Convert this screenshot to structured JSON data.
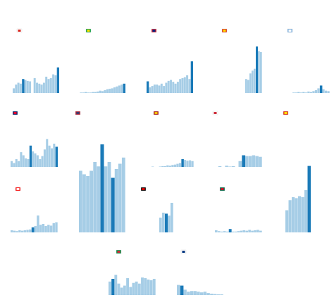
{
  "colors": {
    "bar": "#a6cde6",
    "highlight": "#1a7ab8",
    "background": "#ffffff"
  },
  "chart_data": [
    {
      "type": "bar",
      "flag_icon": "vietnam-flag-icon",
      "flag_colors": [
        "#ffffff",
        "#da251d"
      ],
      "ylim": [
        0,
        100
      ],
      "highlight_index": [
        4,
        19
      ],
      "values": [
        10,
        18,
        22,
        20,
        30,
        28,
        26,
        25,
        0,
        32,
        22,
        20,
        18,
        22,
        35,
        30,
        32,
        40,
        38,
        55
      ]
    },
    {
      "type": "bar",
      "flag_icon": "brazil-flag-icon",
      "flag_colors": [
        "#009c3b",
        "#ffdf00"
      ],
      "ylim": [
        0,
        100
      ],
      "highlight_index": [
        19
      ],
      "values": [
        0,
        1,
        1,
        2,
        1,
        1,
        2,
        2,
        3,
        5,
        4,
        6,
        8,
        9,
        10,
        12,
        14,
        16,
        18,
        20
      ]
    },
    {
      "type": "bar",
      "flag_icon": "uk-flag-icon",
      "flag_colors": [
        "#cf142b",
        "#00247d"
      ],
      "ylim": [
        0,
        100
      ],
      "highlight_index": [
        0,
        19
      ],
      "values": [
        25,
        12,
        15,
        18,
        18,
        16,
        20,
        15,
        22,
        26,
        28,
        24,
        20,
        24,
        30,
        32,
        34,
        38,
        30,
        68
      ]
    },
    {
      "type": "bar",
      "flag_icon": "china-flag-icon",
      "flag_colors": [
        "#de2910",
        "#ffde00"
      ],
      "ylim": [
        0,
        100
      ],
      "highlight_index": [
        9
      ],
      "values": [
        0,
        0,
        0,
        0,
        30,
        28,
        42,
        48,
        52,
        100,
        90,
        88
      ]
    },
    {
      "type": "bar",
      "flag_icon": "argentina-flag-icon",
      "flag_colors": [
        "#74acdf",
        "#ffffff"
      ],
      "ylim": [
        0,
        100
      ],
      "highlight_index": [
        13
      ],
      "values": [
        0,
        0,
        1,
        1,
        2,
        1,
        2,
        1,
        3,
        2,
        4,
        6,
        10,
        16,
        8,
        5,
        4
      ]
    },
    {
      "type": "bar",
      "flag_icon": "australia-flag-icon",
      "flag_colors": [
        "#012169",
        "#e4002b"
      ],
      "ylim": [
        0,
        100
      ],
      "highlight_index": [
        8,
        19
      ],
      "values": [
        15,
        10,
        20,
        15,
        38,
        30,
        22,
        20,
        55,
        40,
        35,
        30,
        20,
        28,
        45,
        72,
        55,
        48,
        60,
        52
      ]
    },
    {
      "type": "bar",
      "flag_icon": "usa-flag-icon",
      "flag_colors": [
        "#b22234",
        "#3c3b6e"
      ],
      "ylim": [
        0,
        100
      ],
      "highlight_index": [
        6,
        9
      ],
      "values": [
        70,
        66,
        64,
        70,
        80,
        75,
        100,
        75,
        80,
        62,
        72,
        78,
        85
      ]
    },
    {
      "type": "bar",
      "flag_icon": "spain-flag-icon",
      "flag_colors": [
        "#aa151b",
        "#f1bf00"
      ],
      "ylim": [
        0,
        100
      ],
      "highlight_index": [
        14
      ],
      "values": [
        0,
        0,
        1,
        0,
        0,
        1,
        2,
        2,
        4,
        3,
        5,
        6,
        8,
        10,
        20,
        18,
        16,
        17,
        15
      ]
    },
    {
      "type": "bar",
      "flag_icon": "south-korea-flag-icon",
      "flag_colors": [
        "#ffffff",
        "#cd2e3a"
      ],
      "ylim": [
        0,
        100
      ],
      "highlight_index": [
        8
      ],
      "values": [
        0,
        2,
        0,
        3,
        1,
        2,
        0,
        15,
        30,
        28,
        28,
        30,
        28,
        26
      ]
    },
    {
      "type": "bar",
      "flag_icon": "china-flag-icon",
      "flag_colors": [
        "#de2910",
        "#ffde00"
      ],
      "ylim": [
        0,
        100
      ],
      "highlight_index": [
        7
      ],
      "values": [
        35,
        45,
        48,
        46,
        48,
        45,
        55,
        100,
        62
      ]
    },
    {
      "type": "bar",
      "flag_icon": "canada-flag-icon",
      "flag_colors": [
        "#ff0000",
        "#ffffff"
      ],
      "ylim": [
        0,
        100
      ],
      "highlight_index": [
        8
      ],
      "values": [
        5,
        4,
        3,
        5,
        4,
        5,
        6,
        7,
        12,
        15,
        40,
        18,
        20,
        15,
        18,
        16,
        22,
        24
      ]
    },
    {
      "type": "bar",
      "flag_icon": "germany-flag-icon",
      "flag_colors": [
        "#000000",
        "#dd0000"
      ],
      "ylim": [
        0,
        100
      ],
      "highlight_index": [
        2
      ],
      "values": [
        30,
        40,
        38,
        34,
        60
      ]
    },
    {
      "type": "bar",
      "flag_icon": "mexico-flag-icon",
      "flag_colors": [
        "#006847",
        "#ce1126"
      ],
      "ylim": [
        0,
        100
      ],
      "highlight_index": [
        5
      ],
      "values": [
        5,
        3,
        2,
        3,
        2,
        8,
        2,
        2,
        3,
        4,
        5,
        4,
        6,
        4,
        5,
        6,
        4
      ]
    },
    {
      "type": "bar",
      "flag_icon": "china-flag-icon",
      "flag_colors": [
        "#de2910",
        "#ffde00"
      ],
      "ylim": [
        0,
        100
      ],
      "highlight_index": [
        7
      ],
      "values": [
        22,
        32,
        35,
        34,
        36,
        35,
        42,
        66
      ]
    },
    {
      "type": "bar",
      "flag_icon": "italy-flag-icon",
      "flag_colors": [
        "#009246",
        "#ce2b37"
      ],
      "ylim": [
        0,
        100
      ],
      "highlight_index": [
        1
      ],
      "values": [
        40,
        48,
        60,
        34,
        22,
        28,
        50,
        24,
        36,
        40,
        34,
        52,
        50,
        46,
        44,
        48
      ]
    },
    {
      "type": "bar",
      "flag_icon": "finland-flag-icon",
      "flag_colors": [
        "#ffffff",
        "#003580"
      ],
      "ylim": [
        0,
        100
      ],
      "highlight_index": [
        1
      ],
      "values": [
        30,
        28,
        16,
        10,
        12,
        12,
        10,
        8,
        10,
        6,
        4,
        3,
        2,
        2
      ]
    }
  ]
}
